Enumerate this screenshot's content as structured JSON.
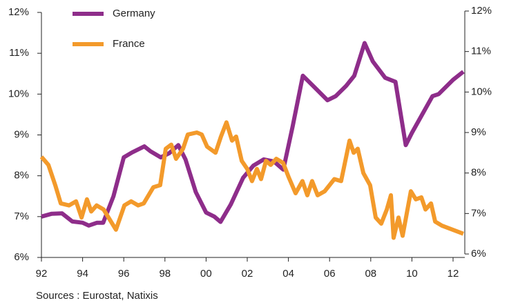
{
  "chart_data": {
    "type": "line",
    "legend": "upper left",
    "source": "Sources : Eurostat, Natixis",
    "xlim": [
      1992,
      2012.57
    ],
    "xticks": [
      {
        "value": 1992,
        "label": "92"
      },
      {
        "value": 1994,
        "label": "94"
      },
      {
        "value": 1996,
        "label": "96"
      },
      {
        "value": 1998,
        "label": "98"
      },
      {
        "value": 2000,
        "label": "00"
      },
      {
        "value": 2002,
        "label": "02"
      },
      {
        "value": 2004,
        "label": "04"
      },
      {
        "value": 2006,
        "label": "06"
      },
      {
        "value": 2008,
        "label": "08"
      },
      {
        "value": 2010,
        "label": "10"
      },
      {
        "value": 2012,
        "label": "12"
      }
    ],
    "ylim": [
      6,
      12
    ],
    "yticks": [
      {
        "value": 6,
        "label": "6%"
      },
      {
        "value": 7,
        "label": "7%"
      },
      {
        "value": 8,
        "label": "8%"
      },
      {
        "value": 9,
        "label": "9%"
      },
      {
        "value": 10,
        "label": "10%"
      },
      {
        "value": 11,
        "label": "11%"
      },
      {
        "value": 12,
        "label": "12%"
      }
    ],
    "y2lim": [
      6,
      12
    ],
    "y2ticks": [
      {
        "value": 6,
        "label": "6%"
      },
      {
        "value": 7,
        "label": "7%"
      },
      {
        "value": 8,
        "label": "8%"
      },
      {
        "value": 9,
        "label": "9%"
      },
      {
        "value": 10,
        "label": "10%"
      },
      {
        "value": 11,
        "label": "11%"
      },
      {
        "value": 12,
        "label": "12%"
      }
    ],
    "series": [
      {
        "name": "Germany",
        "color": "#8e2d8a",
        "x": [
          1992.0,
          1992.5,
          1993.0,
          1993.5,
          1994.0,
          1994.3,
          1994.7,
          1995.0,
          1995.5,
          1996.0,
          1996.4,
          1997.0,
          1997.3,
          1997.8,
          1998.2,
          1998.65,
          1999.0,
          1999.5,
          2000.0,
          2000.4,
          2000.7,
          2001.2,
          2001.8,
          2002.3,
          2002.8,
          2003.3,
          2003.75,
          2004.2,
          2004.7,
          2005.2,
          2005.9,
          2006.3,
          2006.8,
          2007.2,
          2007.7,
          2008.1,
          2008.7,
          2009.2,
          2009.7,
          2010.0,
          2010.5,
          2011.0,
          2011.3,
          2012.0,
          2012.5
        ],
        "values": [
          7.0,
          7.07,
          7.08,
          6.88,
          6.85,
          6.78,
          6.85,
          6.85,
          7.5,
          8.45,
          8.57,
          8.72,
          8.6,
          8.45,
          8.55,
          8.75,
          8.4,
          7.6,
          7.1,
          7.0,
          6.87,
          7.3,
          7.95,
          8.25,
          8.4,
          8.35,
          8.15,
          9.2,
          10.45,
          10.2,
          9.85,
          9.95,
          10.2,
          10.45,
          11.25,
          10.8,
          10.4,
          10.3,
          8.75,
          9.05,
          9.5,
          9.95,
          10.0,
          10.35,
          10.55
        ]
      },
      {
        "name": "France",
        "color": "#f39a2b",
        "axis": "y2",
        "x": [
          1992.0,
          1992.34,
          1992.67,
          1992.94,
          1993.34,
          1993.68,
          1993.95,
          1994.21,
          1994.42,
          1994.68,
          1995.02,
          1995.62,
          1996.03,
          1996.36,
          1996.7,
          1996.97,
          1997.44,
          1997.77,
          1998.04,
          1998.31,
          1998.54,
          1998.88,
          1999.11,
          1999.55,
          1999.79,
          2000.05,
          2000.46,
          2000.72,
          2000.99,
          2001.26,
          2001.46,
          2001.73,
          2002.0,
          2002.23,
          2002.47,
          2002.67,
          2002.91,
          2003.14,
          2003.41,
          2003.74,
          2004.01,
          2004.35,
          2004.68,
          2004.92,
          2005.15,
          2005.42,
          2005.76,
          2006.23,
          2006.56,
          2006.97,
          2007.17,
          2007.37,
          2007.64,
          2007.97,
          2008.24,
          2008.51,
          2008.78,
          2008.98,
          2009.11,
          2009.35,
          2009.55,
          2009.95,
          2010.19,
          2010.46,
          2010.66,
          2010.93,
          2011.13,
          2011.46,
          2012.5
        ],
        "values": [
          8.4,
          8.2,
          7.7,
          7.25,
          7.2,
          7.3,
          6.9,
          7.35,
          7.05,
          7.2,
          7.1,
          6.6,
          7.2,
          7.3,
          7.2,
          7.25,
          7.65,
          7.7,
          8.6,
          8.7,
          8.35,
          8.6,
          8.95,
          9.0,
          8.95,
          8.65,
          8.5,
          8.9,
          9.25,
          8.8,
          8.9,
          8.3,
          8.1,
          7.8,
          8.1,
          7.85,
          8.3,
          8.2,
          8.35,
          8.25,
          7.9,
          7.5,
          7.8,
          7.45,
          7.8,
          7.45,
          7.55,
          7.85,
          7.8,
          8.8,
          8.5,
          8.6,
          8.0,
          7.7,
          6.9,
          6.75,
          7.1,
          7.45,
          6.4,
          6.9,
          6.45,
          7.55,
          7.35,
          7.4,
          7.1,
          7.25,
          6.8,
          6.7,
          6.5
        ]
      }
    ]
  }
}
